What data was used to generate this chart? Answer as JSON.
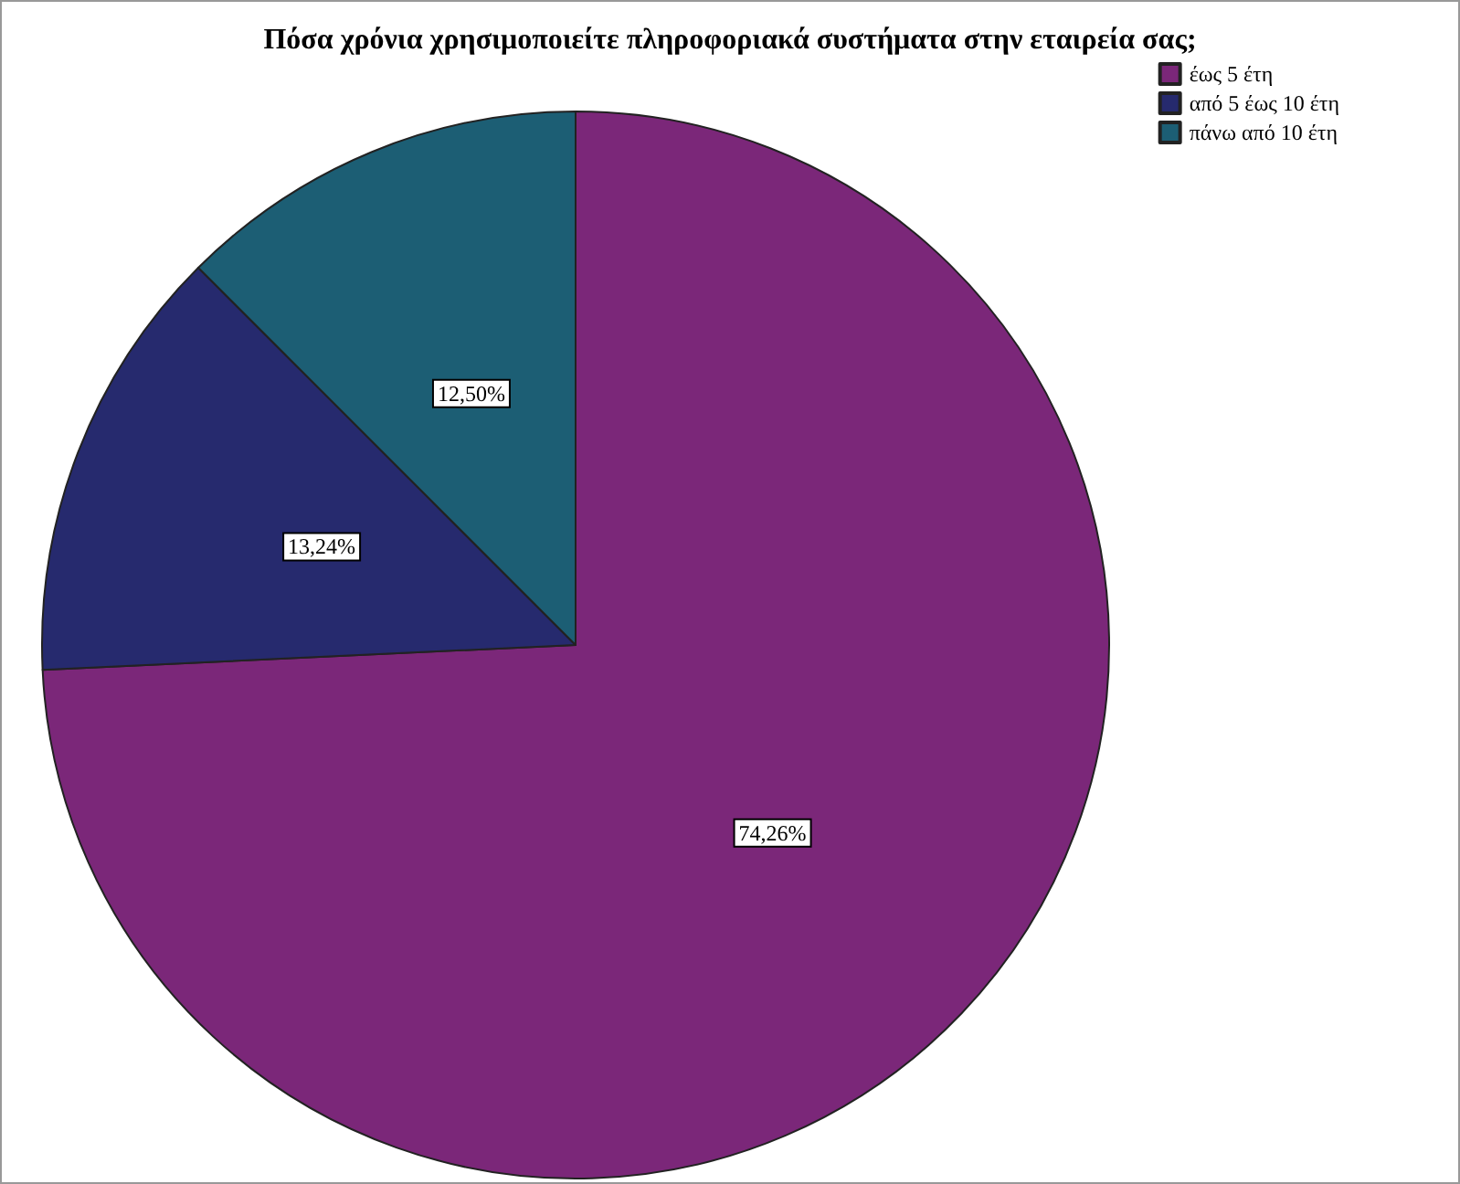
{
  "chart_data": {
    "type": "pie",
    "title": "Πόσα χρόνια χρησιμοποιείτε πληροφοριακά συστήματα στην εταιρεία σας;",
    "categories": [
      "έως 5 έτη",
      "από 5 έως 10 έτη",
      "πάνω από 10 έτη"
    ],
    "values": [
      74.26,
      13.24,
      12.5
    ],
    "value_labels": [
      "74,26%",
      "13,24%",
      "12,50%"
    ],
    "colors": [
      "#7b2779",
      "#262a6e",
      "#1c5e74"
    ],
    "legend": "top right"
  }
}
